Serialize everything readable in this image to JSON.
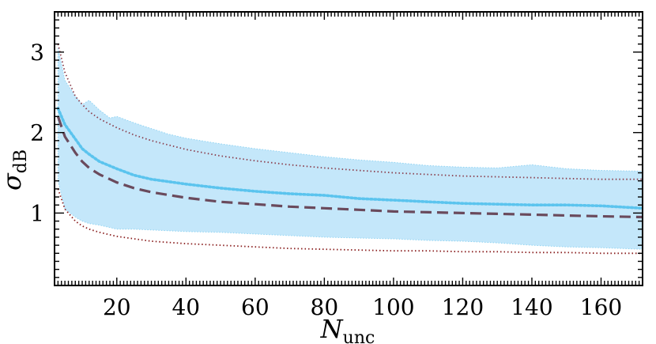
{
  "chart_data": {
    "type": "line",
    "title": "",
    "xlabel": {
      "symbol": "N",
      "subscript": "unc"
    },
    "ylabel": {
      "symbol": "σ",
      "subscript": "dB"
    },
    "xlim": [
      2,
      172
    ],
    "ylim": [
      0.1,
      3.5
    ],
    "x_ticks": [
      20,
      40,
      60,
      80,
      100,
      120,
      140,
      160
    ],
    "x_tick_labels": [
      "20",
      "40",
      "60",
      "80",
      "100",
      "120",
      "140",
      "160"
    ],
    "y_ticks": [
      1,
      2,
      3
    ],
    "y_tick_labels": [
      "1",
      "2",
      "3"
    ],
    "grid": false,
    "legend": "none",
    "colors": {
      "band_fill": "#c4e7fa",
      "band_edge": "#8fd3f2",
      "mean_dotted": "#5bc4ee",
      "model_dashed": "#6a4a5c",
      "upper_bound": "#8b3f4e",
      "lower_bound": "#8b2020"
    },
    "x": [
      3,
      5,
      8,
      10,
      12,
      15,
      20,
      25,
      30,
      40,
      50,
      60,
      70,
      80,
      90,
      100,
      110,
      120,
      130,
      140,
      150,
      160,
      172
    ],
    "series": [
      {
        "style": "dotted",
        "color": "#5bc4ee",
        "values": [
          2.3,
          2.1,
          1.92,
          1.8,
          1.73,
          1.64,
          1.55,
          1.47,
          1.42,
          1.36,
          1.31,
          1.27,
          1.24,
          1.22,
          1.18,
          1.16,
          1.14,
          1.12,
          1.11,
          1.1,
          1.1,
          1.09,
          1.06
        ]
      },
      {
        "style": "dashed",
        "color": "#6a4a5c",
        "values": [
          2.2,
          1.95,
          1.75,
          1.64,
          1.56,
          1.48,
          1.38,
          1.31,
          1.26,
          1.19,
          1.14,
          1.11,
          1.08,
          1.06,
          1.04,
          1.02,
          1.01,
          1.0,
          0.99,
          0.98,
          0.97,
          0.96,
          0.95
        ]
      },
      {
        "style": "dotted",
        "color": "#8b3f4e",
        "values": [
          3.1,
          2.75,
          2.45,
          2.35,
          2.26,
          2.17,
          2.06,
          1.97,
          1.9,
          1.79,
          1.71,
          1.65,
          1.6,
          1.56,
          1.53,
          1.5,
          1.48,
          1.46,
          1.45,
          1.44,
          1.43,
          1.42,
          1.42
        ]
      },
      {
        "style": "dotted",
        "color": "#8b2020",
        "values": [
          1.3,
          1.05,
          0.9,
          0.84,
          0.8,
          0.76,
          0.71,
          0.68,
          0.65,
          0.62,
          0.6,
          0.58,
          0.56,
          0.55,
          0.54,
          0.53,
          0.53,
          0.52,
          0.52,
          0.51,
          0.51,
          0.5,
          0.5
        ]
      }
    ],
    "band": {
      "x": [
        3,
        5,
        8,
        10,
        12,
        15,
        18,
        20,
        25,
        30,
        35,
        40,
        50,
        60,
        70,
        80,
        90,
        100,
        110,
        120,
        130,
        140,
        150,
        160,
        172
      ],
      "upper": [
        3.05,
        2.65,
        2.45,
        2.35,
        2.4,
        2.28,
        2.18,
        2.2,
        2.12,
        2.05,
        1.98,
        1.93,
        1.86,
        1.8,
        1.75,
        1.7,
        1.66,
        1.63,
        1.59,
        1.57,
        1.56,
        1.6,
        1.55,
        1.53,
        1.52
      ],
      "lower": [
        1.4,
        1.05,
        0.95,
        0.9,
        0.87,
        0.85,
        0.82,
        0.8,
        0.8,
        0.79,
        0.78,
        0.77,
        0.76,
        0.74,
        0.72,
        0.7,
        0.69,
        0.68,
        0.66,
        0.65,
        0.63,
        0.6,
        0.58,
        0.57,
        0.55
      ]
    }
  }
}
